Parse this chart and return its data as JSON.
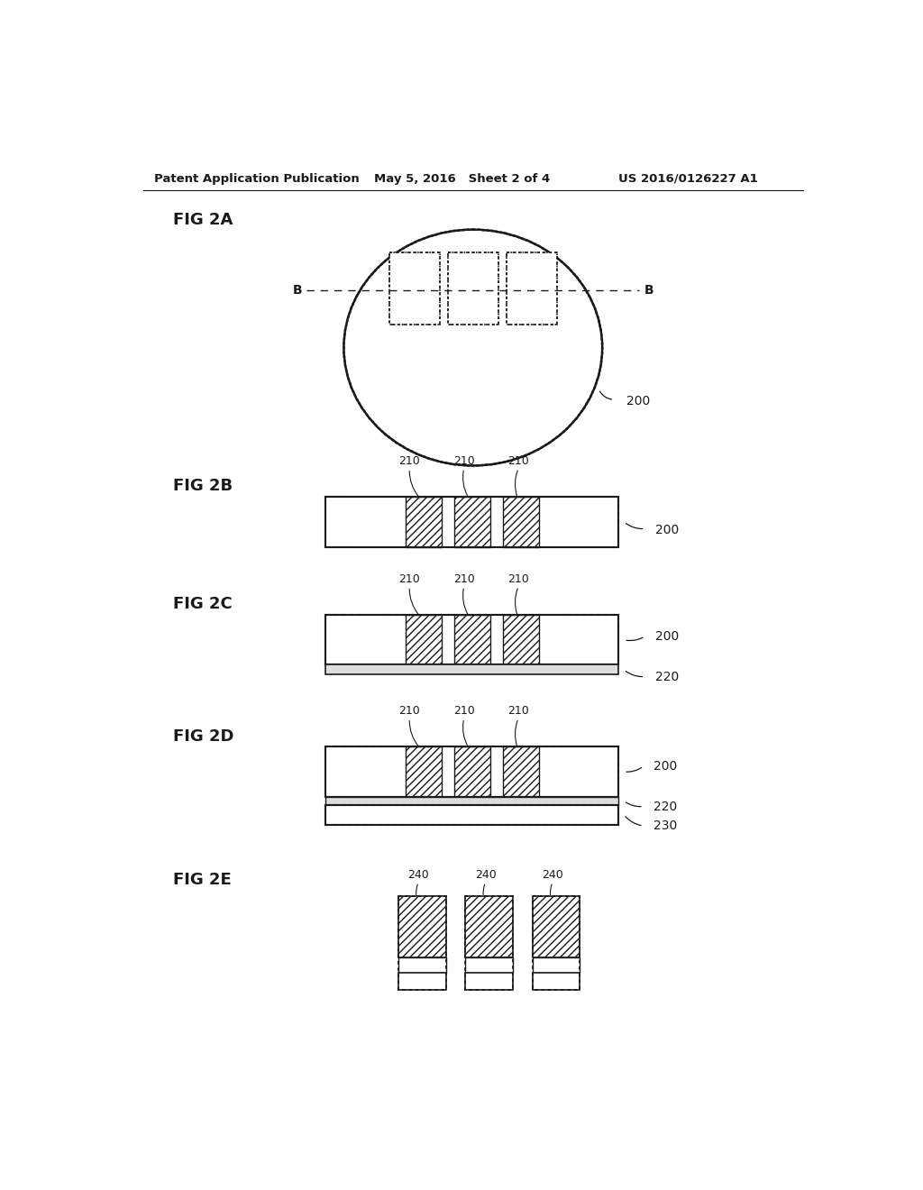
{
  "header_left": "Patent Application Publication",
  "header_mid": "May 5, 2016   Sheet 2 of 4",
  "header_right": "US 2016/0126227 A1",
  "fig2a_label": "FIG 2A",
  "fig2b_label": "FIG 2B",
  "fig2c_label": "FIG 2C",
  "fig2d_label": "FIG 2D",
  "fig2e_label": "FIG 2E",
  "ref_200": "200",
  "ref_210": "210",
  "ref_220": "220",
  "ref_230": "230",
  "ref_240": "240",
  "background_color": "#ffffff",
  "line_color": "#1a1a1a",
  "fig_label_fontsize": 13,
  "header_fontsize": 9.5,
  "ref_fontsize": 10,
  "small_fontsize": 9
}
